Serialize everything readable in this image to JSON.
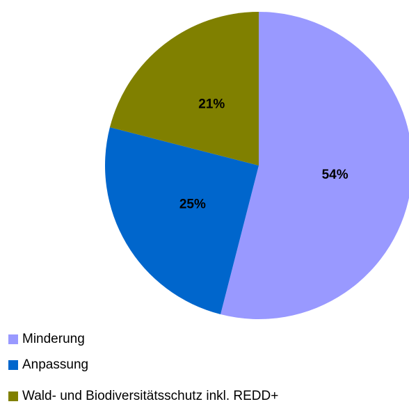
{
  "chart_data": {
    "type": "pie",
    "categories": [
      "Minderung",
      "Anpassung",
      "Wald- und Biodiversitätsschutz inkl. REDD+"
    ],
    "values": [
      54,
      25,
      21
    ],
    "value_labels": [
      "54%",
      "25%",
      "21%"
    ],
    "colors": [
      "#9999ff",
      "#0066cc",
      "#808000"
    ],
    "legend": "bottom-left"
  }
}
